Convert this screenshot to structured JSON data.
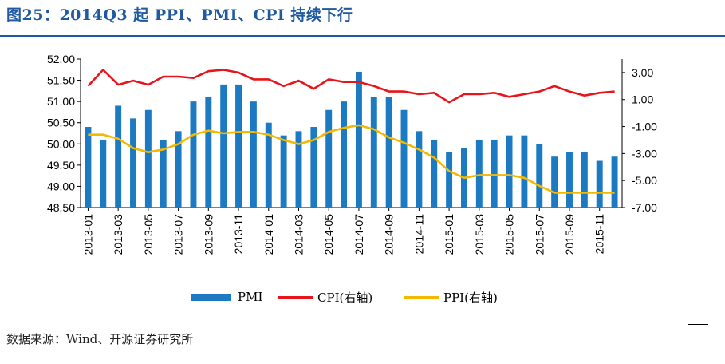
{
  "title": "图25：2014Q3 起 PPI、PMI、CPI 持续下行",
  "source": "数据来源：Wind、开源证券研究所",
  "colors": {
    "pmi": "#1b7ac2",
    "cpi": "#e8141b",
    "ppi": "#f5b800",
    "title": "#1f5aa0"
  },
  "chart_data": {
    "type": "bar+line",
    "x": [
      "2013-01",
      "2013-02",
      "2013-03",
      "2013-04",
      "2013-05",
      "2013-06",
      "2013-07",
      "2013-08",
      "2013-09",
      "2013-10",
      "2013-11",
      "2013-12",
      "2014-01",
      "2014-02",
      "2014-03",
      "2014-04",
      "2014-05",
      "2014-06",
      "2014-07",
      "2014-08",
      "2014-09",
      "2014-10",
      "2014-11",
      "2014-12",
      "2015-01",
      "2015-02",
      "2015-03",
      "2015-04",
      "2015-05",
      "2015-06",
      "2015-07",
      "2015-08",
      "2015-09",
      "2015-10",
      "2015-11",
      "2015-12"
    ],
    "x_tick_labels": [
      "2013-01",
      "2013-03",
      "2013-05",
      "2013-07",
      "2013-09",
      "2013-11",
      "2014-01",
      "2014-03",
      "2014-05",
      "2014-07",
      "2014-09",
      "2014-11",
      "2015-01",
      "2015-03",
      "2015-05",
      "2015-07",
      "2015-09",
      "2015-11"
    ],
    "left_axis": {
      "ylim": [
        48.5,
        52.0
      ],
      "ticks": [
        "52.00",
        "51.50",
        "51.00",
        "50.50",
        "50.00",
        "49.50",
        "49.00",
        "48.50"
      ]
    },
    "right_axis": {
      "ylim": [
        -7.0,
        4.0
      ],
      "ticks": [
        "3.00",
        "1.00",
        "-1.00",
        "-3.00",
        "-5.00",
        "-7.00"
      ]
    },
    "series": [
      {
        "name": "PMI",
        "type": "bar",
        "axis": "left",
        "values": [
          50.4,
          50.1,
          50.9,
          50.6,
          50.8,
          50.1,
          50.3,
          51.0,
          51.1,
          51.4,
          51.4,
          51.0,
          50.5,
          50.2,
          50.3,
          50.4,
          50.8,
          51.0,
          51.7,
          51.1,
          51.1,
          50.8,
          50.3,
          50.1,
          49.8,
          49.9,
          50.1,
          50.1,
          50.2,
          50.2,
          50.0,
          49.7,
          49.8,
          49.8,
          49.6,
          49.7
        ]
      },
      {
        "name": "CPI(右轴)",
        "type": "line",
        "axis": "right",
        "values": [
          2.0,
          3.2,
          2.1,
          2.4,
          2.1,
          2.7,
          2.7,
          2.6,
          3.1,
          3.2,
          3.0,
          2.5,
          2.5,
          2.0,
          2.4,
          1.8,
          2.5,
          2.3,
          2.3,
          2.0,
          1.6,
          1.6,
          1.4,
          1.5,
          0.8,
          1.4,
          1.4,
          1.5,
          1.2,
          1.4,
          1.6,
          2.0,
          1.6,
          1.3,
          1.5,
          1.6
        ]
      },
      {
        "name": "PPI(右轴)",
        "type": "line",
        "axis": "right",
        "values": [
          -1.6,
          -1.6,
          -1.9,
          -2.6,
          -2.9,
          -2.7,
          -2.3,
          -1.6,
          -1.3,
          -1.5,
          -1.4,
          -1.4,
          -1.6,
          -2.0,
          -2.3,
          -2.0,
          -1.4,
          -1.1,
          -0.9,
          -1.2,
          -1.8,
          -2.2,
          -2.7,
          -3.3,
          -4.3,
          -4.8,
          -4.6,
          -4.6,
          -4.6,
          -4.8,
          -5.4,
          -5.9,
          -5.9,
          -5.9,
          -5.9,
          -5.9
        ]
      }
    ],
    "legend": {
      "position": "bottom",
      "items": [
        "PMI",
        "CPI(右轴)",
        "PPI(右轴)"
      ]
    },
    "grid": false
  }
}
